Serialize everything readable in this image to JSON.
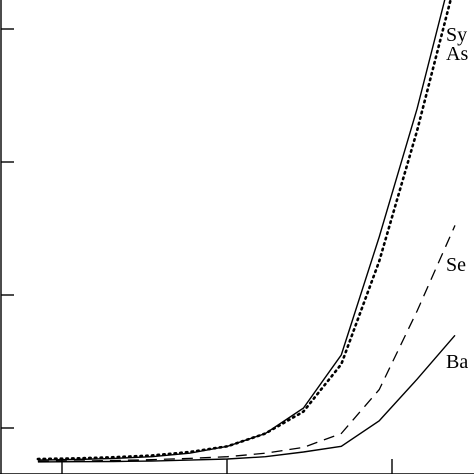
{
  "chart_data": {
    "type": "line",
    "title": "",
    "xlabel": "",
    "ylabel": "",
    "x": [
      1,
      2,
      3,
      4,
      5,
      6,
      7,
      8,
      9,
      10,
      11,
      12
    ],
    "xlim": [
      0,
      12.5
    ],
    "ylim": [
      -0.1,
      4.0
    ],
    "grid": false,
    "legend": "none",
    "series": [
      {
        "name": "Sy",
        "style": "solid",
        "values": [
          0.02,
          0.025,
          0.035,
          0.05,
          0.08,
          0.14,
          0.25,
          0.47,
          0.93,
          1.95,
          3.06,
          4.35
        ]
      },
      {
        "name": "As",
        "style": "dotted",
        "values": [
          0.03,
          0.035,
          0.045,
          0.06,
          0.09,
          0.14,
          0.25,
          0.44,
          0.85,
          1.74,
          2.87,
          4.15
        ]
      },
      {
        "name": "Se",
        "style": "dashed",
        "values": [
          0.01,
          0.012,
          0.017,
          0.024,
          0.035,
          0.05,
          0.08,
          0.13,
          0.25,
          0.63,
          1.31,
          2.05
        ]
      },
      {
        "name": "Ba",
        "style": "solid",
        "values": [
          0.005,
          0.006,
          0.008,
          0.012,
          0.02,
          0.03,
          0.05,
          0.09,
          0.14,
          0.36,
          0.72,
          1.1
        ]
      }
    ]
  }
}
